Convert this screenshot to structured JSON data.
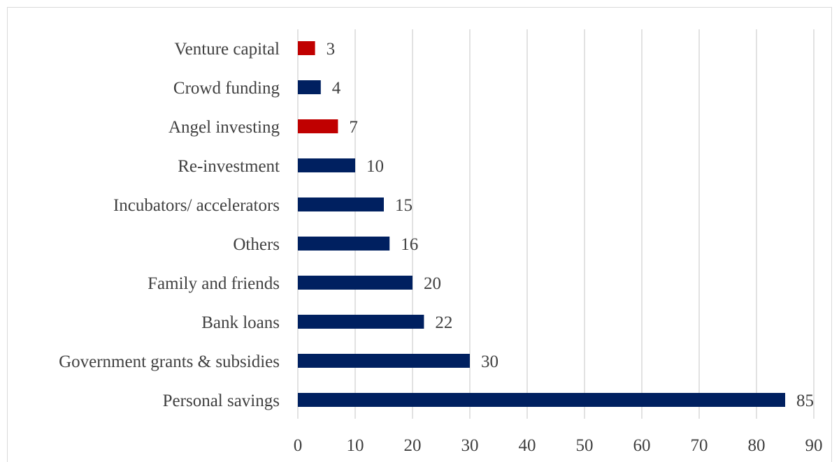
{
  "chart_data": {
    "type": "bar",
    "orientation": "horizontal",
    "categories": [
      "Venture capital",
      "Crowd funding",
      "Angel investing",
      "Re-investment",
      "Incubators/ accelerators",
      "Others",
      "Family and friends",
      "Bank loans",
      "Government grants & subsidies",
      "Personal savings"
    ],
    "values": [
      3,
      4,
      7,
      10,
      15,
      16,
      20,
      22,
      30,
      85
    ],
    "bar_colors": [
      "#C00000",
      "#002060",
      "#C00000",
      "#002060",
      "#002060",
      "#002060",
      "#002060",
      "#002060",
      "#002060",
      "#002060"
    ],
    "xlim": [
      0,
      90
    ],
    "x_ticks": [
      0,
      10,
      20,
      30,
      40,
      50,
      60,
      70,
      80,
      90
    ],
    "data_labels": true,
    "grid": "vertical",
    "legend": "none",
    "title": "",
    "xlabel": "",
    "ylabel": ""
  },
  "colors": {
    "primary_bar": "#002060",
    "highlight_bar": "#C00000",
    "gridline": "#d9d9d9",
    "text": "#404040"
  }
}
